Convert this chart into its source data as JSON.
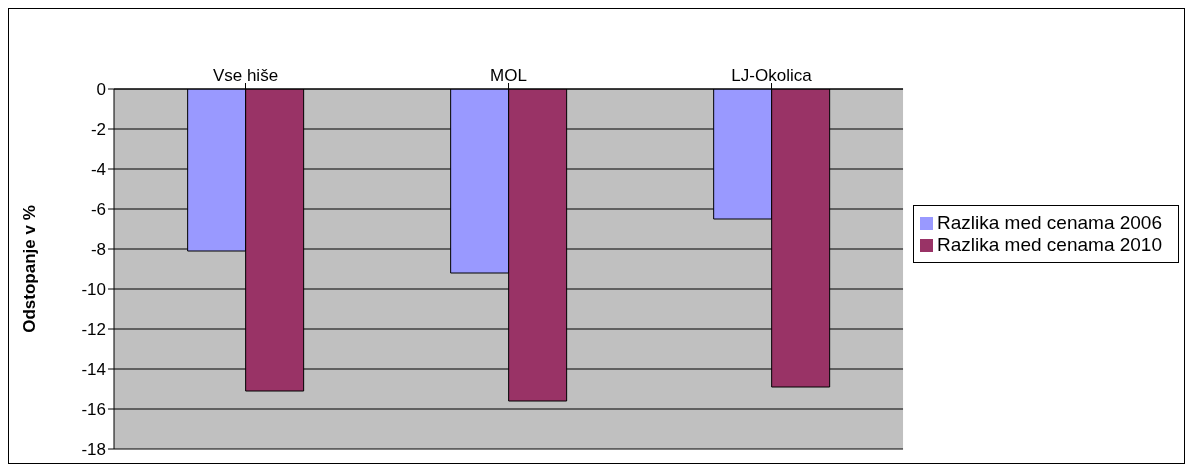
{
  "chart_data": {
    "type": "bar",
    "ylabel": "Odstopanje v %",
    "categories": [
      "Vse hiše",
      "MOL",
      "LJ-Okolica"
    ],
    "series": [
      {
        "name": "Razlika med cenama 2006",
        "color": "#9999ff",
        "values": [
          -8.1,
          -9.2,
          -6.5
        ]
      },
      {
        "name": "Razlika med cenama 2010",
        "color": "#993366",
        "values": [
          -15.1,
          -15.6,
          -14.9
        ]
      }
    ],
    "ylim": [
      -18,
      0
    ],
    "yticks": [
      -18,
      -16,
      -14,
      -12,
      -10,
      -8,
      -6,
      -4,
      -2,
      0
    ],
    "grid": "y",
    "legend": "right"
  }
}
